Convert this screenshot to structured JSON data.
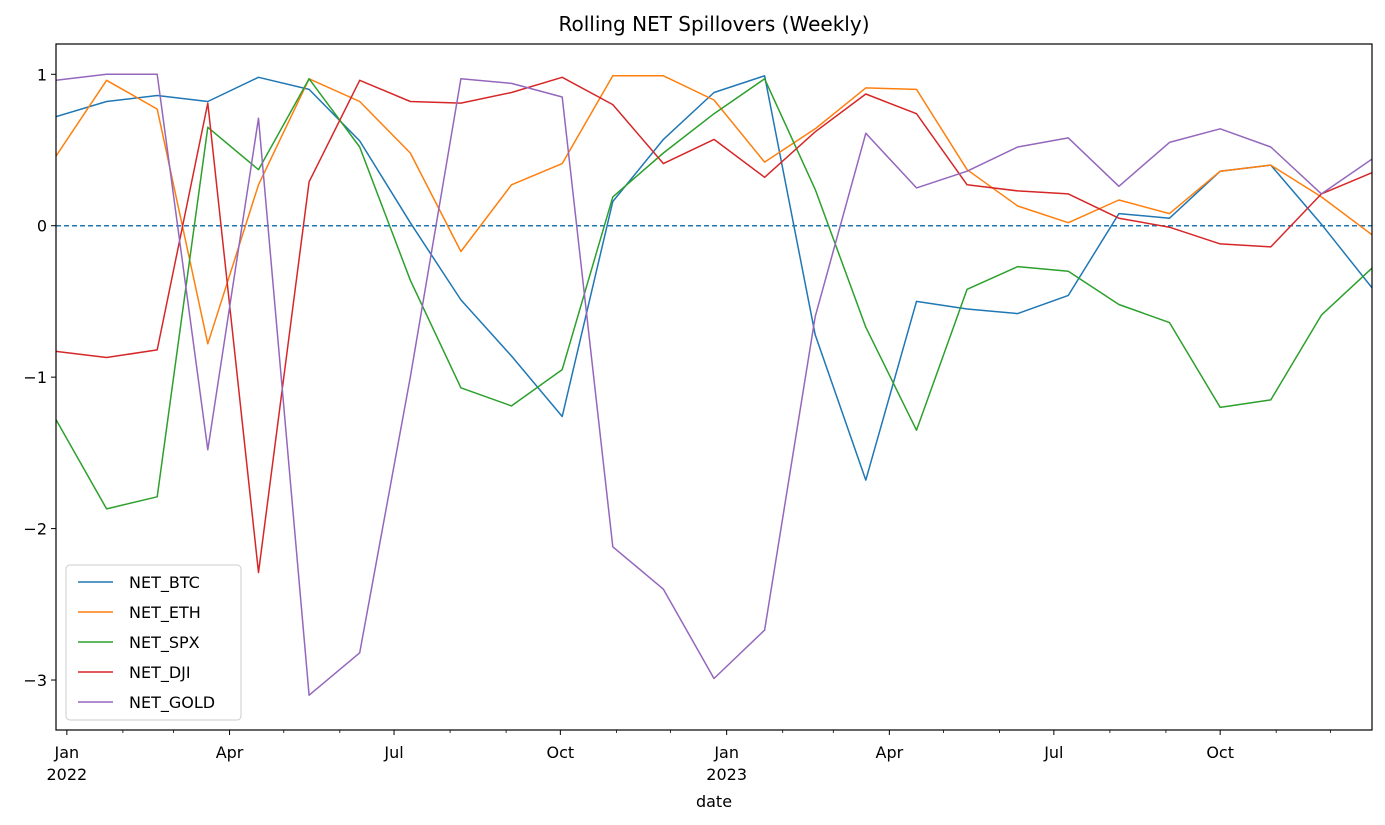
{
  "chart_data": {
    "type": "line",
    "title": "Rolling NET Spillovers (Weekly)",
    "xlabel": "date",
    "ylabel": "",
    "ylim": [
      -3.33,
      1.2
    ],
    "xlim": [
      "2021-12-26",
      "2023-12-24"
    ],
    "yticks": [
      {
        "value": 1,
        "label": "1"
      },
      {
        "value": 0,
        "label": "0"
      },
      {
        "value": -1,
        "label": "−1"
      },
      {
        "value": -2,
        "label": "−2"
      },
      {
        "value": -3,
        "label": "−3"
      }
    ],
    "xticks": [
      {
        "date": "2022-01-01",
        "label": "Jan",
        "sublabel": "2022"
      },
      {
        "date": "2022-04-01",
        "label": "Apr",
        "sublabel": ""
      },
      {
        "date": "2022-07-01",
        "label": "Jul",
        "sublabel": ""
      },
      {
        "date": "2022-10-01",
        "label": "Oct",
        "sublabel": ""
      },
      {
        "date": "2023-01-01",
        "label": "Jan",
        "sublabel": "2023"
      },
      {
        "date": "2023-04-01",
        "label": "Apr",
        "sublabel": ""
      },
      {
        "date": "2023-07-01",
        "label": "Jul",
        "sublabel": ""
      },
      {
        "date": "2023-10-01",
        "label": "Oct",
        "sublabel": ""
      }
    ],
    "minor_ticks": [
      "2022-02-01",
      "2022-03-01",
      "2022-05-01",
      "2022-06-01",
      "2022-08-01",
      "2022-09-01",
      "2022-11-01",
      "2022-12-01",
      "2023-02-01",
      "2023-03-01",
      "2023-05-01",
      "2023-06-01",
      "2023-08-01",
      "2023-09-01",
      "2023-11-01",
      "2023-12-01"
    ],
    "reference_line": {
      "y": 0,
      "style": "dashed",
      "color": "#1f77b4"
    },
    "x": [
      "2021-12-26",
      "2022-01-23",
      "2022-02-20",
      "2022-03-20",
      "2022-04-17",
      "2022-05-15",
      "2022-06-12",
      "2022-07-10",
      "2022-08-07",
      "2022-09-04",
      "2022-10-02",
      "2022-10-30",
      "2022-11-27",
      "2022-12-25",
      "2023-01-22",
      "2023-02-19",
      "2023-03-19",
      "2023-04-16",
      "2023-05-14",
      "2023-06-11",
      "2023-07-09",
      "2023-08-06",
      "2023-09-03",
      "2023-10-01",
      "2023-10-29",
      "2023-11-26",
      "2023-12-24"
    ],
    "series": [
      {
        "name": "NET_BTC",
        "color": "#1f77b4",
        "values": [
          0.72,
          0.82,
          0.86,
          0.82,
          0.98,
          0.9,
          0.56,
          0.02,
          -0.49,
          -0.86,
          -1.26,
          0.16,
          0.57,
          0.88,
          0.99,
          -0.72,
          -1.68,
          -0.5,
          -0.55,
          -0.58,
          -0.46,
          0.08,
          0.05,
          0.36,
          0.4,
          0.01,
          -0.41
        ]
      },
      {
        "name": "NET_ETH",
        "color": "#ff7f0e",
        "values": [
          0.46,
          0.96,
          0.77,
          -0.78,
          0.27,
          0.97,
          0.82,
          0.48,
          -0.17,
          0.27,
          0.41,
          0.99,
          0.99,
          0.83,
          0.42,
          0.64,
          0.91,
          0.9,
          0.37,
          0.13,
          0.02,
          0.17,
          0.08,
          0.36,
          0.4,
          0.19,
          -0.06
        ]
      },
      {
        "name": "NET_SPX",
        "color": "#2ca02c",
        "values": [
          -1.28,
          -1.87,
          -1.79,
          0.65,
          0.37,
          0.97,
          0.52,
          -0.36,
          -1.07,
          -1.19,
          -0.95,
          0.19,
          0.48,
          0.74,
          0.97,
          0.24,
          -0.67,
          -1.35,
          -0.42,
          -0.27,
          -0.3,
          -0.52,
          -0.64,
          -1.2,
          -1.15,
          -0.59,
          -0.28
        ]
      },
      {
        "name": "NET_DJI",
        "color": "#d62728",
        "values": [
          -0.83,
          -0.87,
          -0.82,
          0.81,
          -2.29,
          0.29,
          0.96,
          0.82,
          0.81,
          0.88,
          0.98,
          0.8,
          0.41,
          0.57,
          0.32,
          0.62,
          0.87,
          0.74,
          0.27,
          0.23,
          0.21,
          0.05,
          -0.01,
          -0.12,
          -0.14,
          0.21,
          0.35
        ]
      },
      {
        "name": "NET_GOLD",
        "color": "#9467bd",
        "values": [
          0.96,
          1.0,
          1.0,
          -1.48,
          0.71,
          -3.1,
          -2.82,
          -1.0,
          0.97,
          0.94,
          0.85,
          -2.12,
          -2.4,
          -2.99,
          -2.67,
          -0.6,
          0.61,
          0.25,
          0.36,
          0.52,
          0.58,
          0.26,
          0.55,
          0.64,
          0.52,
          0.21,
          0.44
        ]
      }
    ],
    "legend": {
      "placement": "lower-left",
      "entries": [
        "NET_BTC",
        "NET_ETH",
        "NET_SPX",
        "NET_DJI",
        "NET_GOLD"
      ]
    },
    "grid": false
  }
}
